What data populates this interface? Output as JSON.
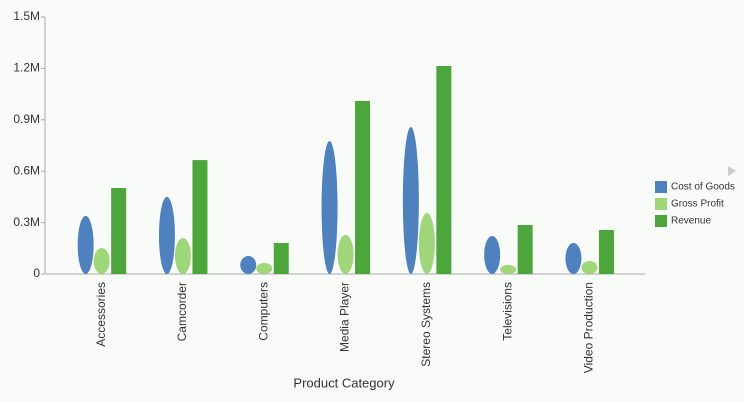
{
  "chart_data": {
    "type": "bar",
    "x_label": "Product Category",
    "categories": [
      "Accessories",
      "Camcorder",
      "Computers",
      "Media Player",
      "Stereo Systems",
      "Televisions",
      "Video Production"
    ],
    "series": [
      {
        "name": "Cost of Goods",
        "color": "#4e81bd",
        "shape": "ellipse",
        "values": [
          339000,
          450000,
          105000,
          776000,
          858000,
          222000,
          181000
        ]
      },
      {
        "name": "Gross Profit",
        "color": "#9fd67a",
        "shape": "ellipse",
        "values": [
          152000,
          210000,
          64000,
          228000,
          356000,
          53000,
          76000
        ]
      },
      {
        "name": "Revenue",
        "color": "#4ca63c",
        "shape": "bar",
        "values": [
          502000,
          665000,
          181000,
          1010000,
          1214000,
          286000,
          257000
        ]
      }
    ],
    "ylim": [
      0,
      1500000
    ],
    "yticks": [
      0,
      {
        "value": 300000,
        "label": "0.3M"
      },
      {
        "value": 600000,
        "label": "0.6M"
      },
      {
        "value": 900000,
        "label": "0.9M"
      },
      {
        "value": 1200000,
        "label": "1.2M"
      },
      {
        "value": 1500000,
        "label": "1.5M"
      }
    ],
    "grid": false,
    "legend": "right"
  }
}
